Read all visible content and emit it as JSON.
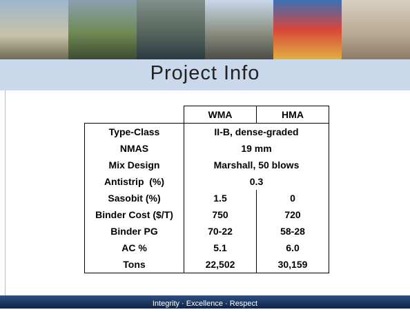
{
  "title": "Project Info",
  "table": {
    "header": [
      "WMA",
      "HMA"
    ],
    "rows": [
      {
        "label": "Type-Class",
        "value": "II-B, dense-graded"
      },
      {
        "label": "NMAS",
        "value": "19 mm"
      },
      {
        "label": "Mix Design",
        "value": "Marshall, 50 blows"
      },
      {
        "label": "Antistrip  (%)",
        "value": "0.3"
      },
      {
        "label": "Sasobit (%)",
        "wma": "1.5",
        "hma": "0"
      },
      {
        "label": "Binder Cost ($/T)",
        "wma": "750",
        "hma": "720"
      },
      {
        "label": "Binder PG",
        "wma": "70-22",
        "hma": "58-28"
      },
      {
        "label": "AC %",
        "wma": "5.1",
        "hma": "6.0"
      },
      {
        "label": "Tons",
        "wma": "22,502",
        "hma": "30,159"
      }
    ]
  },
  "footer": "Integrity · Excellence · Respect"
}
